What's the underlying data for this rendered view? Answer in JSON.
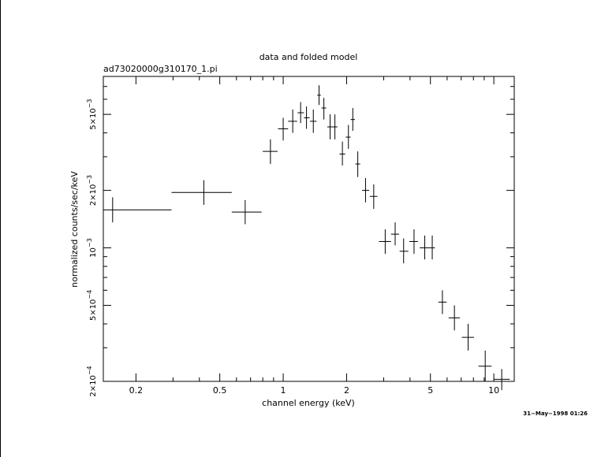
{
  "chart_data": {
    "type": "scatter",
    "title": "data and folded model",
    "subtitle": "ad73020000g310170_1.pi",
    "xlabel": "channel energy (keV)",
    "ylabel": "normalized counts/sec/keV",
    "xscale": "log",
    "yscale": "log",
    "xlim": [
      0.14,
      12.5
    ],
    "ylim": [
      0.0002,
      0.0079
    ],
    "x_ticks": [
      {
        "value": 0.2,
        "label": "0.2"
      },
      {
        "value": 0.5,
        "label": "0.5"
      },
      {
        "value": 1,
        "label": "1"
      },
      {
        "value": 2,
        "label": "2"
      },
      {
        "value": 5,
        "label": "5"
      },
      {
        "value": 10,
        "label": "10"
      }
    ],
    "y_ticks": [
      {
        "value": 0.0002,
        "mant": "2×10",
        "exp": "−4"
      },
      {
        "value": 0.0005,
        "mant": "5×10",
        "exp": "−4"
      },
      {
        "value": 0.001,
        "mant": "10",
        "exp": "−3"
      },
      {
        "value": 0.002,
        "mant": "2×10",
        "exp": "−3"
      },
      {
        "value": 0.005,
        "mant": "5×10",
        "exp": "−3"
      }
    ],
    "series": [
      {
        "style": "crosses",
        "points": [
          {
            "x": 0.155,
            "xlo": 0.14,
            "xhi": 0.295,
            "y": 0.00158,
            "ylo": 0.00136,
            "yhi": 0.00184
          },
          {
            "x": 0.42,
            "xlo": 0.295,
            "xhi": 0.57,
            "y": 0.00195,
            "ylo": 0.00168,
            "yhi": 0.00226
          },
          {
            "x": 0.66,
            "xlo": 0.57,
            "xhi": 0.79,
            "y": 0.00154,
            "ylo": 0.00133,
            "yhi": 0.00178
          },
          {
            "x": 0.87,
            "xlo": 0.8,
            "xhi": 0.94,
            "y": 0.0032,
            "ylo": 0.00275,
            "yhi": 0.0037
          },
          {
            "x": 1.0,
            "xlo": 0.945,
            "xhi": 1.055,
            "y": 0.0042,
            "ylo": 0.00365,
            "yhi": 0.0048
          },
          {
            "x": 1.11,
            "xlo": 1.055,
            "xhi": 1.165,
            "y": 0.0046,
            "ylo": 0.004,
            "yhi": 0.0053
          },
          {
            "x": 1.21,
            "xlo": 1.17,
            "xhi": 1.255,
            "y": 0.0051,
            "ylo": 0.0045,
            "yhi": 0.0058
          },
          {
            "x": 1.29,
            "xlo": 1.255,
            "xhi": 1.335,
            "y": 0.0048,
            "ylo": 0.0042,
            "yhi": 0.0055
          },
          {
            "x": 1.39,
            "xlo": 1.34,
            "xhi": 1.44,
            "y": 0.0046,
            "ylo": 0.004,
            "yhi": 0.0053
          },
          {
            "x": 1.48,
            "xlo": 1.45,
            "xhi": 1.51,
            "y": 0.0063,
            "ylo": 0.0056,
            "yhi": 0.0071
          },
          {
            "x": 1.56,
            "xlo": 1.52,
            "xhi": 1.6,
            "y": 0.0054,
            "ylo": 0.0047,
            "yhi": 0.0061
          },
          {
            "x": 1.67,
            "xlo": 1.62,
            "xhi": 1.72,
            "y": 0.0043,
            "ylo": 0.0037,
            "yhi": 0.005
          },
          {
            "x": 1.76,
            "xlo": 1.72,
            "xhi": 1.81,
            "y": 0.0043,
            "ylo": 0.0037,
            "yhi": 0.005
          },
          {
            "x": 1.91,
            "xlo": 1.85,
            "xhi": 1.97,
            "y": 0.0031,
            "ylo": 0.0027,
            "yhi": 0.0036
          },
          {
            "x": 2.04,
            "xlo": 1.98,
            "xhi": 2.09,
            "y": 0.0038,
            "ylo": 0.0033,
            "yhi": 0.0044
          },
          {
            "x": 2.14,
            "xlo": 2.09,
            "xhi": 2.19,
            "y": 0.0047,
            "ylo": 0.0041,
            "yhi": 0.0054
          },
          {
            "x": 2.26,
            "xlo": 2.2,
            "xhi": 2.32,
            "y": 0.00275,
            "ylo": 0.00235,
            "yhi": 0.0032
          },
          {
            "x": 2.46,
            "xlo": 2.37,
            "xhi": 2.56,
            "y": 0.002,
            "ylo": 0.00173,
            "yhi": 0.00232
          },
          {
            "x": 2.69,
            "xlo": 2.58,
            "xhi": 2.8,
            "y": 0.00186,
            "ylo": 0.0016,
            "yhi": 0.00215
          },
          {
            "x": 3.05,
            "xlo": 2.85,
            "xhi": 3.25,
            "y": 0.00108,
            "ylo": 0.00093,
            "yhi": 0.00125
          },
          {
            "x": 3.4,
            "xlo": 3.25,
            "xhi": 3.55,
            "y": 0.00118,
            "ylo": 0.00103,
            "yhi": 0.00136
          },
          {
            "x": 3.73,
            "xlo": 3.57,
            "xhi": 3.93,
            "y": 0.00096,
            "ylo": 0.00083,
            "yhi": 0.00112
          },
          {
            "x": 4.18,
            "xlo": 3.97,
            "xhi": 4.36,
            "y": 0.00108,
            "ylo": 0.00093,
            "yhi": 0.00125
          },
          {
            "x": 4.7,
            "xlo": 4.45,
            "xhi": 4.95,
            "y": 0.001,
            "ylo": 0.00087,
            "yhi": 0.00116
          },
          {
            "x": 5.1,
            "xlo": 4.95,
            "xhi": 5.25,
            "y": 0.001,
            "ylo": 0.00087,
            "yhi": 0.00116
          },
          {
            "x": 5.7,
            "xlo": 5.45,
            "xhi": 5.97,
            "y": 0.00052,
            "ylo": 0.00045,
            "yhi": 0.0006
          },
          {
            "x": 6.5,
            "xlo": 6.1,
            "xhi": 6.9,
            "y": 0.00043,
            "ylo": 0.00037,
            "yhi": 0.0005
          },
          {
            "x": 7.55,
            "xlo": 7.05,
            "xhi": 8.05,
            "y": 0.00034,
            "ylo": 0.00029,
            "yhi": 0.0004
          },
          {
            "x": 9.1,
            "xlo": 8.45,
            "xhi": 9.75,
            "y": 0.00024,
            "ylo": 0.0002,
            "yhi": 0.00029
          },
          {
            "x": 10.9,
            "xlo": 9.95,
            "xhi": 11.9,
            "y": 0.000205,
            "ylo": 0.00018,
            "yhi": 0.000232
          }
        ]
      }
    ],
    "grid": false,
    "legend": "none",
    "timestamp": "31−May−1998 01:26"
  }
}
